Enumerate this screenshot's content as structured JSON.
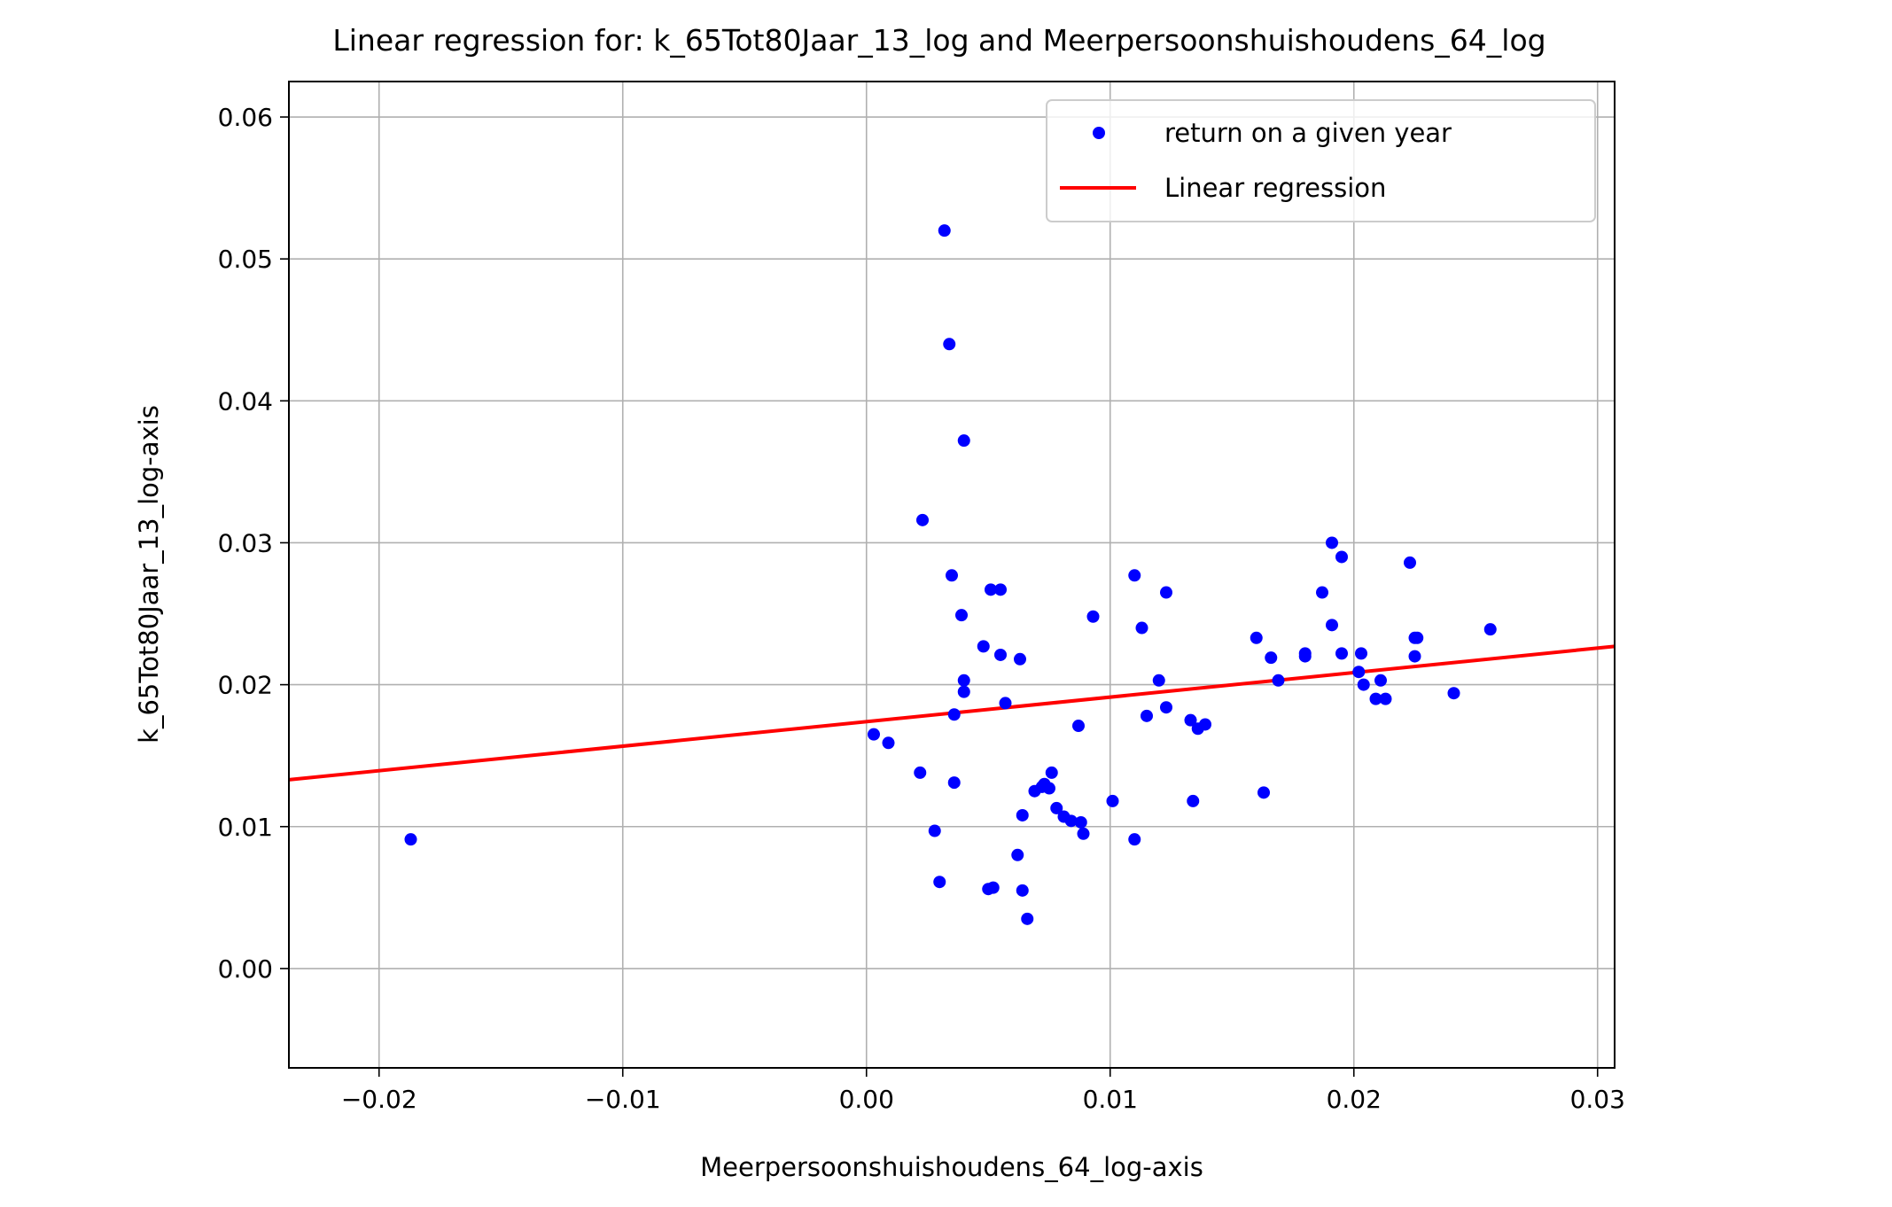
{
  "chart_data": {
    "type": "scatter",
    "title": "Linear regression for: k_65Tot80Jaar_13_log and Meerpersoonshuishoudens_64_log",
    "xlabel": "Meerpersoonshuishoudens_64_log-axis",
    "ylabel": "k_65Tot80Jaar_13_log-axis",
    "xlim": [
      -0.0237,
      0.0307
    ],
    "ylim": [
      -0.007,
      0.0625
    ],
    "xticks": [
      -0.02,
      -0.01,
      0.0,
      0.01,
      0.02,
      0.03
    ],
    "xtick_labels": [
      "−0.02",
      "−0.01",
      "0.00",
      "0.01",
      "0.02",
      "0.03"
    ],
    "yticks": [
      0.0,
      0.01,
      0.02,
      0.03,
      0.04,
      0.05,
      0.06
    ],
    "ytick_labels": [
      "0.00",
      "0.01",
      "0.02",
      "0.03",
      "0.04",
      "0.05",
      "0.06"
    ],
    "grid": true,
    "legend_position": "top-right",
    "series": [
      {
        "name": "return on a given year",
        "kind": "scatter",
        "color": "#0000ff",
        "x": [
          -0.0187,
          0.0003,
          0.0009,
          0.0022,
          0.0023,
          0.0028,
          0.003,
          0.0032,
          0.0034,
          0.0035,
          0.0036,
          0.0036,
          0.0039,
          0.004,
          0.004,
          0.004,
          0.0048,
          0.005,
          0.0051,
          0.0052,
          0.0055,
          0.0055,
          0.0057,
          0.0062,
          0.0063,
          0.0064,
          0.0064,
          0.0066,
          0.0069,
          0.0072,
          0.0073,
          0.0075,
          0.0076,
          0.0078,
          0.0081,
          0.0084,
          0.0087,
          0.0088,
          0.0089,
          0.0093,
          0.0101,
          0.011,
          0.011,
          0.0113,
          0.0115,
          0.012,
          0.0123,
          0.0123,
          0.0133,
          0.0134,
          0.0136,
          0.0139,
          0.016,
          0.0163,
          0.0166,
          0.0169,
          0.018,
          0.018,
          0.0187,
          0.0191,
          0.0191,
          0.0195,
          0.0195,
          0.0202,
          0.0203,
          0.0204,
          0.0209,
          0.0211,
          0.0213,
          0.0223,
          0.0225,
          0.0225,
          0.0226,
          0.0241,
          0.0256
        ],
        "y": [
          0.0091,
          0.0165,
          0.0159,
          0.0138,
          0.0316,
          0.0097,
          0.0061,
          0.052,
          0.044,
          0.0277,
          0.0179,
          0.0131,
          0.0249,
          0.0372,
          0.0203,
          0.0195,
          0.0227,
          0.0056,
          0.0267,
          0.0057,
          0.0267,
          0.0221,
          0.0187,
          0.008,
          0.0218,
          0.0055,
          0.0108,
          0.0035,
          0.0125,
          0.0128,
          0.013,
          0.0127,
          0.0138,
          0.0113,
          0.0107,
          0.0104,
          0.0171,
          0.0103,
          0.0095,
          0.0248,
          0.0118,
          0.0091,
          0.0277,
          0.024,
          0.0178,
          0.0203,
          0.0184,
          0.0265,
          0.0175,
          0.0118,
          0.0169,
          0.0172,
          0.0233,
          0.0124,
          0.0219,
          0.0203,
          0.0222,
          0.022,
          0.0265,
          0.0242,
          0.03,
          0.029,
          0.0222,
          0.0209,
          0.0222,
          0.02,
          0.019,
          0.0203,
          0.019,
          0.0286,
          0.022,
          0.0233,
          0.0233,
          0.0194,
          0.0239
        ]
      },
      {
        "name": "Linear regression",
        "kind": "line",
        "color": "#ff0000",
        "x": [
          -0.0237,
          0.0307
        ],
        "y": [
          0.0133,
          0.0227
        ]
      }
    ]
  }
}
